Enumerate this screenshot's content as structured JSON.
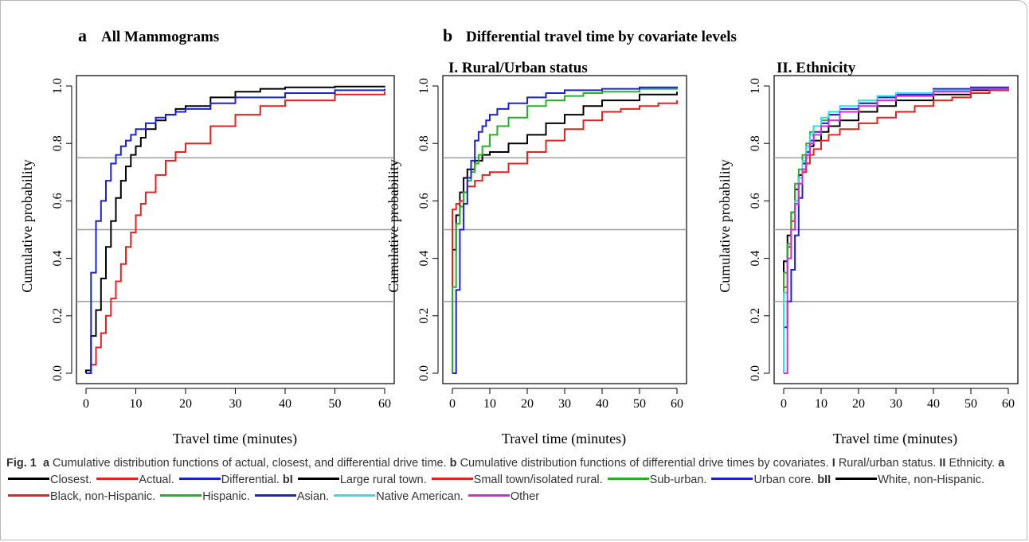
{
  "panel_a": {
    "letter": "a",
    "title": "All Mammograms"
  },
  "panel_b": {
    "letter": "b",
    "title": "Differential travel time by covariate levels"
  },
  "chart_data": [
    {
      "type": "line",
      "step": true,
      "title": "",
      "xlabel": "Travel time (minutes)",
      "ylabel": "Cumulative probability",
      "xlim": [
        0,
        60
      ],
      "ylim": [
        0,
        1
      ],
      "xticks": [
        0,
        10,
        20,
        30,
        40,
        50,
        60
      ],
      "yticks": [
        0.0,
        0.2,
        0.4,
        0.6,
        0.8,
        1.0
      ],
      "ytick_labels": [
        "0.0",
        "0.2",
        "0.4",
        "0.6",
        "0.8",
        "1.0"
      ],
      "hlines": [
        0.25,
        0.5,
        0.75
      ],
      "series": [
        {
          "name": "Closest",
          "color": "#000000",
          "x": [
            0,
            1,
            2,
            3,
            4,
            5,
            6,
            7,
            8,
            9,
            10,
            11,
            12,
            14,
            16,
            18,
            20,
            25,
            30,
            35,
            40,
            50,
            60
          ],
          "y": [
            0.01,
            0.13,
            0.22,
            0.33,
            0.44,
            0.53,
            0.61,
            0.67,
            0.72,
            0.76,
            0.79,
            0.82,
            0.85,
            0.88,
            0.9,
            0.92,
            0.93,
            0.96,
            0.98,
            0.99,
            0.995,
            0.998,
            0.999
          ]
        },
        {
          "name": "Actual",
          "color": "#e8201e",
          "x": [
            0,
            1,
            2,
            3,
            4,
            5,
            6,
            7,
            8,
            9,
            10,
            11,
            12,
            14,
            16,
            18,
            20,
            25,
            30,
            35,
            40,
            50,
            60
          ],
          "y": [
            0.0,
            0.03,
            0.09,
            0.14,
            0.2,
            0.26,
            0.32,
            0.38,
            0.44,
            0.49,
            0.55,
            0.59,
            0.63,
            0.69,
            0.74,
            0.77,
            0.8,
            0.86,
            0.9,
            0.93,
            0.95,
            0.97,
            0.98
          ]
        },
        {
          "name": "Differential",
          "color": "#1a21d6",
          "x": [
            0,
            1,
            2,
            3,
            4,
            5,
            6,
            7,
            8,
            9,
            10,
            12,
            14,
            16,
            18,
            20,
            25,
            30,
            40,
            50,
            60
          ],
          "y": [
            0.0,
            0.35,
            0.53,
            0.6,
            0.67,
            0.73,
            0.76,
            0.79,
            0.81,
            0.83,
            0.85,
            0.87,
            0.89,
            0.9,
            0.91,
            0.92,
            0.94,
            0.96,
            0.975,
            0.985,
            0.99
          ]
        }
      ]
    },
    {
      "type": "line",
      "step": true,
      "subtitle": "I. Rural/Urban status",
      "xlabel": "Travel time (minutes)",
      "ylabel": "Cumulative probability",
      "xlim": [
        0,
        60
      ],
      "ylim": [
        0,
        1
      ],
      "xticks": [
        0,
        10,
        20,
        30,
        40,
        50,
        60
      ],
      "yticks": [
        0.0,
        0.2,
        0.4,
        0.6,
        0.8,
        1.0
      ],
      "ytick_labels": [
        "0.0",
        "0.2",
        "0.4",
        "0.6",
        "0.8",
        "1.0"
      ],
      "hlines": [
        0.25,
        0.5,
        0.75
      ],
      "series": [
        {
          "name": "Large rural town",
          "color": "#000000",
          "x": [
            0,
            1,
            2,
            3,
            4,
            6,
            8,
            10,
            15,
            20,
            25,
            30,
            35,
            40,
            50,
            60
          ],
          "y": [
            0.43,
            0.55,
            0.63,
            0.68,
            0.71,
            0.74,
            0.76,
            0.77,
            0.8,
            0.83,
            0.87,
            0.9,
            0.93,
            0.95,
            0.97,
            0.98
          ]
        },
        {
          "name": "Small town/isolated rural",
          "color": "#e8201e",
          "x": [
            0,
            1,
            2,
            3,
            4,
            6,
            8,
            10,
            15,
            20,
            25,
            30,
            35,
            40,
            45,
            50,
            55,
            60
          ],
          "y": [
            0.57,
            0.59,
            0.6,
            0.63,
            0.65,
            0.67,
            0.69,
            0.7,
            0.73,
            0.77,
            0.81,
            0.85,
            0.88,
            0.91,
            0.92,
            0.93,
            0.94,
            0.95
          ]
        },
        {
          "name": "Sub-urban",
          "color": "#23b423",
          "x": [
            0,
            1,
            2,
            3,
            4,
            5,
            6,
            7,
            8,
            10,
            12,
            15,
            20,
            25,
            30,
            35,
            40,
            50,
            60
          ],
          "y": [
            0.3,
            0.52,
            0.58,
            0.63,
            0.67,
            0.7,
            0.73,
            0.76,
            0.79,
            0.83,
            0.86,
            0.89,
            0.93,
            0.95,
            0.965,
            0.975,
            0.98,
            0.99,
            0.995
          ]
        },
        {
          "name": "Urban core",
          "color": "#1a21d6",
          "x": [
            0,
            1,
            2,
            3,
            4,
            5,
            6,
            7,
            8,
            9,
            10,
            12,
            15,
            20,
            25,
            30,
            40,
            50,
            60
          ],
          "y": [
            0.0,
            0.29,
            0.5,
            0.59,
            0.68,
            0.74,
            0.81,
            0.84,
            0.86,
            0.88,
            0.9,
            0.92,
            0.94,
            0.96,
            0.975,
            0.985,
            0.99,
            0.995,
            0.998
          ]
        }
      ]
    },
    {
      "type": "line",
      "step": true,
      "subtitle": "II. Ethnicity",
      "xlabel": "Travel time (minutes)",
      "ylabel": "Cumulative probability",
      "xlim": [
        0,
        60
      ],
      "ylim": [
        0,
        1
      ],
      "xticks": [
        0,
        10,
        20,
        30,
        40,
        50,
        60
      ],
      "yticks": [
        0.0,
        0.2,
        0.4,
        0.6,
        0.8,
        1.0
      ],
      "ytick_labels": [
        "0.0",
        "0.2",
        "0.4",
        "0.6",
        "0.8",
        "1.0"
      ],
      "hlines": [
        0.25,
        0.5,
        0.75
      ],
      "series": [
        {
          "name": "White, non-Hispanic",
          "color": "#000000",
          "x": [
            0,
            1,
            2,
            3,
            4,
            5,
            6,
            7,
            8,
            10,
            12,
            15,
            20,
            25,
            30,
            40,
            50,
            60
          ],
          "y": [
            0.39,
            0.48,
            0.56,
            0.64,
            0.69,
            0.73,
            0.76,
            0.79,
            0.81,
            0.84,
            0.86,
            0.88,
            0.91,
            0.93,
            0.95,
            0.97,
            0.985,
            0.99
          ]
        },
        {
          "name": "Black, non-Hispanic",
          "color": "#e8201e",
          "x": [
            0,
            1,
            2,
            3,
            4,
            5,
            6,
            7,
            8,
            10,
            12,
            15,
            20,
            25,
            30,
            35,
            40,
            45,
            50,
            55,
            60
          ],
          "y": [
            0.3,
            0.44,
            0.53,
            0.6,
            0.66,
            0.7,
            0.73,
            0.76,
            0.78,
            0.81,
            0.83,
            0.85,
            0.87,
            0.89,
            0.91,
            0.93,
            0.95,
            0.96,
            0.975,
            0.985,
            0.99
          ]
        },
        {
          "name": "Hispanic",
          "color": "#23b423",
          "x": [
            0,
            1,
            2,
            3,
            4,
            5,
            6,
            7,
            8,
            10,
            12,
            15,
            20,
            25,
            30,
            40,
            50,
            60
          ],
          "y": [
            0.35,
            0.45,
            0.56,
            0.66,
            0.71,
            0.76,
            0.8,
            0.84,
            0.86,
            0.88,
            0.9,
            0.92,
            0.94,
            0.96,
            0.97,
            0.985,
            0.99,
            0.995
          ]
        },
        {
          "name": "Asian",
          "color": "#1a21d6",
          "x": [
            0,
            1,
            2,
            3,
            4,
            5,
            6,
            7,
            8,
            10,
            12,
            15,
            20,
            25,
            30,
            40,
            50,
            60
          ],
          "y": [
            0.16,
            0.25,
            0.36,
            0.48,
            0.61,
            0.71,
            0.77,
            0.81,
            0.84,
            0.87,
            0.9,
            0.92,
            0.94,
            0.96,
            0.97,
            0.99,
            0.995,
            0.998
          ]
        },
        {
          "name": "Native American",
          "color": "#33dde6",
          "x": [
            0,
            1,
            2,
            3,
            4,
            5,
            6,
            7,
            8,
            10,
            12,
            15,
            20,
            25,
            30,
            40,
            50,
            60
          ],
          "y": [
            0.28,
            0.4,
            0.5,
            0.6,
            0.68,
            0.74,
            0.79,
            0.83,
            0.86,
            0.89,
            0.91,
            0.93,
            0.95,
            0.965,
            0.975,
            0.985,
            0.99,
            0.995
          ]
        },
        {
          "name": "Other",
          "color": "#d42bd8",
          "x": [
            0,
            1,
            2,
            3,
            4,
            5,
            6,
            7,
            8,
            10,
            12,
            15,
            20,
            25,
            30,
            40,
            50,
            60
          ],
          "y": [
            0.0,
            0.4,
            0.5,
            0.59,
            0.66,
            0.71,
            0.76,
            0.8,
            0.83,
            0.86,
            0.88,
            0.91,
            0.93,
            0.95,
            0.965,
            0.98,
            0.99,
            0.995
          ]
        }
      ]
    }
  ],
  "caption": {
    "fig_label": "Fig. 1",
    "part_a": "a",
    "text_a": "Cumulative distribution functions of actual, closest, and differential drive time.",
    "part_b": "b",
    "text_b": "Cumulative distribution functions of differential drive times by covariates.",
    "part_I": "I",
    "text_I": "Rural/urban status.",
    "part_II": "II",
    "text_II": "Ethnicity.",
    "legend_a_label": "a",
    "legend_a": [
      {
        "label": "Closest.",
        "color": "#000000"
      },
      {
        "label": "Actual.",
        "color": "#e8201e"
      },
      {
        "label": "Differential.",
        "color": "#1a21d6"
      }
    ],
    "legend_bI_label": "bI",
    "legend_bI": [
      {
        "label": "Large rural town.",
        "color": "#000000"
      },
      {
        "label": "Small town/isolated rural.",
        "color": "#e8201e"
      },
      {
        "label": "Sub-urban.",
        "color": "#23b423"
      },
      {
        "label": "Urban core.",
        "color": "#1a21d6"
      }
    ],
    "legend_bII_label": "bII",
    "legend_bII": [
      {
        "label": "White, non-Hispanic.",
        "color": "#000000"
      },
      {
        "label": "Black, non-Hispanic.",
        "color": "#e8201e"
      },
      {
        "label": "Hispanic.",
        "color": "#23b423"
      },
      {
        "label": "Asian.",
        "color": "#1a21d6"
      },
      {
        "label": "Native American.",
        "color": "#33dde6"
      },
      {
        "label": "Other",
        "color": "#d42bd8"
      }
    ]
  }
}
